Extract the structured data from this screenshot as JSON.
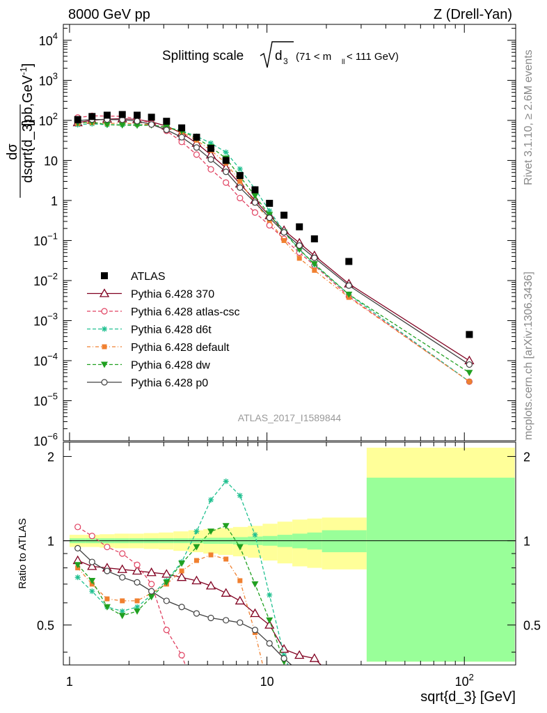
{
  "header": {
    "left": "8000 GeV pp",
    "right": "Z (Drell-Yan)"
  },
  "side_text": {
    "rivet": "Rivet 3.1.10, ≥ 2.6M events",
    "mcplots": "mcplots.cern.ch [arXiv:1306.3436]"
  },
  "chart_data": {
    "type": "scatter",
    "title_main": "Splitting scale",
    "title_sqrt": "d",
    "title_sub": "3",
    "title_range_pre": "(71 < m",
    "title_range_sub": "ll",
    "title_range_post": " < 111 GeV)",
    "watermark": "ATLAS_2017_I1589844",
    "ylabel_top": "dσ",
    "ylabel_bottom": "dsqrt{d_3}",
    "ylabel_units": "[pb,GeV",
    "ylabel_units_sup": "-1",
    "ylabel_units_end": "]",
    "ratio_ylabel": "Ratio to ATLAS",
    "xlabel": "sqrt{d_3} [GeV]",
    "x_scale": "log",
    "xlim": [
      0.93,
      182
    ],
    "ylim_main": [
      1e-06,
      25000.0
    ],
    "ylim_ratio": [
      0.36,
      2.25
    ],
    "x_ticks": [
      {
        "v": 1,
        "label": "1"
      },
      {
        "v": 10,
        "label": "10"
      },
      {
        "v": 100,
        "label": "10",
        "sup": "2"
      }
    ],
    "y_ticks_main": [
      {
        "v": 10000,
        "label": "10",
        "sup": "4"
      },
      {
        "v": 1000,
        "label": "10",
        "sup": "3"
      },
      {
        "v": 100,
        "label": "10",
        "sup": "2"
      },
      {
        "v": 10,
        "label": "10"
      },
      {
        "v": 1,
        "label": "1"
      },
      {
        "v": 0.1,
        "label": "10",
        "sup": "−1"
      },
      {
        "v": 0.01,
        "label": "10",
        "sup": "−2"
      },
      {
        "v": 0.001,
        "label": "10",
        "sup": "−3"
      },
      {
        "v": 0.0001,
        "label": "10",
        "sup": "−4"
      },
      {
        "v": 1e-05,
        "label": "10",
        "sup": "−5"
      },
      {
        "v": 1e-06,
        "label": "10",
        "sup": "−6"
      }
    ],
    "y_ticks_ratio": [
      {
        "v": 0.5,
        "label": "0.5"
      },
      {
        "v": 1,
        "label": "1"
      },
      {
        "v": 2,
        "label": "2"
      }
    ],
    "x": [
      1.1,
      1.3,
      1.55,
      1.85,
      2.2,
      2.6,
      3.1,
      3.7,
      4.4,
      5.2,
      6.2,
      7.3,
      8.7,
      10.3,
      12.2,
      14.6,
      17.4,
      26.0,
      106.0
    ],
    "band_edges": [
      1.0,
      1.2,
      1.42,
      1.69,
      2.0,
      2.38,
      2.83,
      3.36,
      4.0,
      4.76,
      5.66,
      6.73,
      8.0,
      9.51,
      11.3,
      13.45,
      16.0,
      19.0,
      32.0,
      180.0
    ],
    "band_stat": [
      0.02,
      0.02,
      0.02,
      0.02,
      0.02,
      0.02,
      0.02,
      0.02,
      0.02,
      0.025,
      0.025,
      0.03,
      0.035,
      0.04,
      0.05,
      0.06,
      0.07,
      0.09,
      0.68
    ],
    "band_total": [
      0.05,
      0.05,
      0.055,
      0.06,
      0.06,
      0.065,
      0.07,
      0.08,
      0.09,
      0.1,
      0.11,
      0.12,
      0.13,
      0.15,
      0.17,
      0.19,
      0.2,
      0.21,
      1.15
    ],
    "data": {
      "name": "ATLAS",
      "color": "#000000",
      "values": [
        105,
        125,
        135,
        140,
        135,
        120,
        95,
        65,
        38,
        20,
        10,
        4.2,
        1.85,
        0.85,
        0.43,
        0.22,
        0.11,
        0.03,
        0.00045
      ]
    },
    "series": [
      {
        "name": "Pythia 6.428 370",
        "color": "#800020",
        "dash": "",
        "marker": "triangle-open",
        "ratio": [
          0.85,
          0.81,
          0.8,
          0.79,
          0.78,
          0.77,
          0.76,
          0.74,
          0.72,
          0.69,
          0.65,
          0.61,
          0.55,
          0.5,
          0.41,
          0.39,
          0.38,
          null,
          null
        ],
        "values": [
          88,
          101,
          108,
          110,
          106,
          92,
          72,
          48,
          27,
          13.8,
          6.5,
          2.6,
          1.02,
          0.42,
          0.18,
          0.087,
          0.042,
          0.0083,
          0.0001
        ]
      },
      {
        "name": "Pythia 6.428 atlas-csc",
        "color": "#e04060",
        "dash": "5,3",
        "marker": "circle-open",
        "ratio": [
          1.12,
          1.04,
          0.95,
          0.9,
          0.82,
          0.7,
          0.48,
          0.39,
          0.28,
          null,
          null,
          null,
          null,
          null,
          null,
          null,
          null,
          null,
          null
        ],
        "values": [
          118,
          130,
          128,
          126,
          110,
          84,
          55,
          29,
          14,
          6.0,
          2.8,
          1.15,
          0.5,
          0.24,
          0.11,
          0.05,
          0.024,
          0.004,
          3e-05
        ]
      },
      {
        "name": "Pythia 6.428 d6t",
        "color": "#20c090",
        "dash": "5,3",
        "marker": "star",
        "ratio": [
          0.74,
          0.66,
          0.58,
          0.56,
          0.58,
          0.64,
          0.72,
          0.84,
          1.08,
          1.4,
          1.63,
          1.45,
          1.05,
          0.64,
          0.39,
          null,
          null,
          null,
          null
        ],
        "values": [
          78,
          82,
          78,
          78,
          78,
          77,
          68,
          55,
          40,
          27,
          16,
          6.1,
          1.95,
          0.55,
          0.17,
          0.06,
          0.025,
          0.0045,
          3e-05
        ]
      },
      {
        "name": "Pythia 6.428 default",
        "color": "#f08030",
        "dash": "5,3,1,3",
        "marker": "square",
        "ratio": [
          0.8,
          0.7,
          0.62,
          0.61,
          0.61,
          0.65,
          0.7,
          0.78,
          0.85,
          0.89,
          0.86,
          0.72,
          0.47,
          null,
          null,
          null,
          null,
          null,
          null
        ],
        "values": [
          84,
          88,
          84,
          85,
          82,
          78,
          67,
          51,
          32,
          17.8,
          8.6,
          3.0,
          0.87,
          0.32,
          0.1,
          0.036,
          0.018,
          0.0038,
          3e-05
        ]
      },
      {
        "name": "Pythia 6.428 dw",
        "color": "#20a020",
        "dash": "5,3",
        "marker": "triangle-down",
        "ratio": [
          0.82,
          0.72,
          0.58,
          0.54,
          0.56,
          0.63,
          0.71,
          0.83,
          0.95,
          1.08,
          1.13,
          0.95,
          0.7,
          0.52,
          0.37,
          null,
          null,
          null,
          null
        ],
        "values": [
          86,
          90,
          78,
          76,
          75,
          76,
          67,
          54,
          36,
          21.6,
          11.3,
          4.0,
          1.3,
          0.44,
          0.16,
          0.06,
          0.026,
          0.0045,
          5e-05
        ]
      },
      {
        "name": "Pythia 6.428 p0",
        "color": "#404040",
        "dash": "",
        "marker": "circle-open",
        "ratio": [
          0.94,
          0.84,
          0.78,
          0.74,
          0.71,
          0.66,
          0.61,
          0.58,
          0.55,
          0.53,
          0.52,
          0.51,
          0.48,
          0.43,
          0.38,
          0.34,
          null,
          null,
          null
        ],
        "values": [
          99,
          105,
          105,
          104,
          96,
          79,
          58,
          38,
          21,
          10.6,
          5.2,
          2.1,
          0.89,
          0.37,
          0.16,
          0.075,
          0.037,
          0.0075,
          8e-05
        ]
      }
    ]
  }
}
